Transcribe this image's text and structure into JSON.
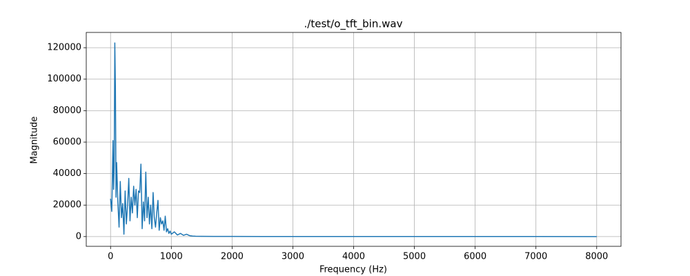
{
  "chart_data": {
    "type": "line",
    "title": "./test/o_tft_bin.wav",
    "x_label": "Frequency (Hz)",
    "y_label": "Magnitude",
    "color": "#1f77b4",
    "grid": true,
    "x": [
      0,
      20,
      40,
      50,
      60,
      70,
      80,
      90,
      100,
      120,
      140,
      160,
      180,
      200,
      220,
      240,
      260,
      280,
      300,
      320,
      340,
      360,
      380,
      400,
      420,
      440,
      460,
      480,
      500,
      520,
      540,
      560,
      580,
      600,
      620,
      640,
      660,
      680,
      700,
      720,
      740,
      760,
      780,
      800,
      820,
      840,
      860,
      880,
      900,
      920,
      940,
      960,
      980,
      1000,
      1050,
      1100,
      1150,
      1200,
      1250,
      1300,
      1350,
      1400,
      1500,
      1700,
      2000,
      3000,
      4000,
      5000,
      6000,
      7000,
      8000
    ],
    "values": [
      24000,
      16000,
      61000,
      30000,
      45000,
      123000,
      95000,
      25000,
      47000,
      22000,
      6000,
      35000,
      12000,
      21000,
      1500,
      29000,
      8000,
      20000,
      37000,
      10000,
      25000,
      15000,
      32000,
      20000,
      30000,
      12000,
      29000,
      28000,
      46000,
      5000,
      22000,
      10000,
      41000,
      12000,
      25000,
      8000,
      20000,
      5000,
      28000,
      12000,
      6000,
      15000,
      23000,
      4000,
      12000,
      8000,
      10000,
      4000,
      13000,
      3000,
      5000,
      2000,
      3500,
      1500,
      3000,
      1000,
      2000,
      800,
      1500,
      600,
      300,
      200,
      150,
      100,
      80,
      50,
      40,
      30,
      20,
      20,
      10
    ],
    "xlim": [
      -400,
      8400
    ],
    "ylim": [
      -6200,
      129700
    ],
    "xticks": [
      0,
      1000,
      2000,
      3000,
      4000,
      5000,
      6000,
      7000,
      8000
    ],
    "yticks": [
      0,
      20000,
      40000,
      60000,
      80000,
      100000,
      120000
    ]
  }
}
